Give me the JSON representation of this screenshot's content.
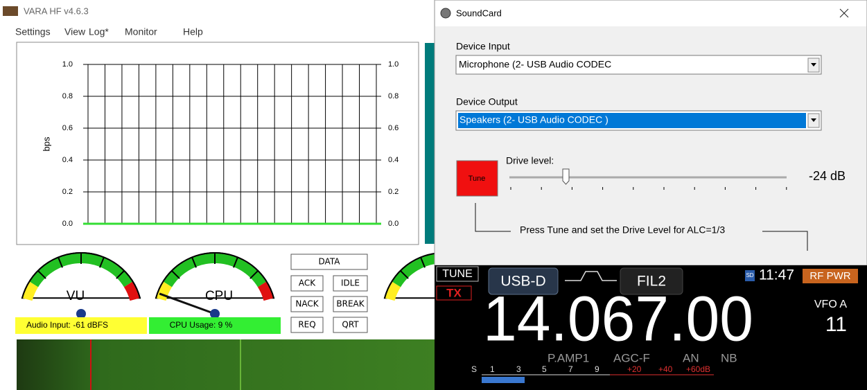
{
  "vara": {
    "title": "VARA HF v4.6.3",
    "menu": [
      "Settings",
      "View",
      "Log*",
      "Monitor",
      "Help"
    ],
    "chart": {
      "y_label": "bps",
      "ylim": [
        0,
        1
      ],
      "yticks": [
        {
          "value": 0,
          "label": "0.0"
        },
        0.2,
        0.4,
        0.6,
        0.8,
        {
          "value": 1,
          "label": "1.0"
        }
      ],
      "grid": true,
      "line_color": "#33dd33"
    },
    "gauges": [
      {
        "label": "VU",
        "status": "Audio Input: -61 dBFS",
        "status_color": "#ffff33"
      },
      {
        "label": "CPU",
        "status": "CPU Usage: 9 %",
        "status_color": "#33ee33"
      }
    ],
    "buttons": [
      "DATA",
      "ACK",
      "IDLE",
      "NACK",
      "BREAK",
      "REQ",
      "QRT"
    ]
  },
  "soundcard": {
    "title": "SoundCard",
    "device_input_label": "Device Input",
    "device_input": "Microphone (2- USB Audio CODEC",
    "device_output_label": "Device Output",
    "device_output": "Speakers (2- USB Audio CODEC )",
    "tune": "Tune",
    "drive_label": "Drive level:",
    "drive_value": "-24 dB",
    "hint": "Press Tune and set the Drive Level for ALC=1/3"
  },
  "radio": {
    "tune": "TUNE",
    "tx": "TX",
    "mode": "USB-D",
    "filter": "FIL2",
    "sd": "SD",
    "time": "11:47",
    "rf": "RF PWR",
    "frequency": "14.067.00",
    "vfo": "VFO A",
    "vfo_number": "11",
    "functions": [
      "P.AMP1",
      "AGC-F",
      "AN",
      "NB"
    ],
    "meter_scale": [
      "S",
      "1",
      "3",
      "5",
      "7",
      "9",
      "+20",
      "+40",
      "+60dB"
    ]
  }
}
